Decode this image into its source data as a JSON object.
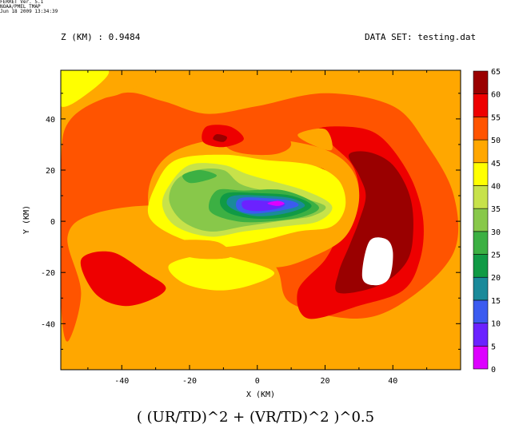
{
  "header": {
    "stamp": [
      "FERRET Ver. 5.1",
      "NOAA/PMEL TMAP",
      "Jun 18 2009 13:34:39"
    ],
    "z_label": "Z (KM) : 0.9484",
    "dataset": "DATA SET: testing.dat"
  },
  "caption": "( (UR/TD)^2 + (VR/TD)^2 )^0.5",
  "chart_data": {
    "type": "heatmap",
    "xlabel": "X (KM)",
    "ylabel": "Y (KM)",
    "xlim": [
      -58,
      60
    ],
    "ylim": [
      -58,
      59
    ],
    "xticks": [
      -40,
      -20,
      0,
      20,
      40
    ],
    "yticks": [
      -40,
      -20,
      0,
      20,
      40
    ],
    "colorbar": {
      "levels": [
        0,
        5,
        10,
        15,
        20,
        25,
        30,
        35,
        40,
        45,
        50,
        55,
        60,
        65
      ],
      "colors": [
        "#dd00ff",
        "#6b22ff",
        "#3b5bf0",
        "#1a8a9a",
        "#109a45",
        "#3cb043",
        "#88c84a",
        "#c7e24a",
        "#ffff00",
        "#ffa700",
        "#ff5400",
        "#ee0000",
        "#9a0000"
      ]
    },
    "fields": {
      "background_level": 45,
      "regions": [
        {
          "level": 50,
          "points": [
            [
              -56,
              -47
            ],
            [
              -52,
              -28
            ],
            [
              -56,
              -6
            ],
            [
              -48,
              3
            ],
            [
              -28,
              6
            ],
            [
              -10,
              -1
            ],
            [
              5,
              -17
            ],
            [
              10,
              -32
            ],
            [
              30,
              -38
            ],
            [
              45,
              -30
            ],
            [
              58,
              -12
            ],
            [
              58,
              10
            ],
            [
              50,
              30
            ],
            [
              40,
              45
            ],
            [
              20,
              50
            ],
            [
              0,
              45
            ],
            [
              -15,
              42
            ],
            [
              -28,
              47
            ],
            [
              -40,
              50
            ],
            [
              -55,
              40
            ],
            [
              -58,
              20
            ],
            [
              -58,
              -30
            ]
          ]
        },
        {
          "level": 55,
          "points": [
            [
              15,
              -38
            ],
            [
              30,
              -33
            ],
            [
              43,
              -27
            ],
            [
              48,
              -15
            ],
            [
              49,
              0
            ],
            [
              46,
              15
            ],
            [
              40,
              28
            ],
            [
              34,
              35
            ],
            [
              26,
              37
            ],
            [
              18,
              36
            ],
            [
              22,
              30
            ],
            [
              28,
              22
            ],
            [
              30,
              12
            ],
            [
              28,
              5
            ],
            [
              24,
              -5
            ],
            [
              20,
              -15
            ],
            [
              12,
              -27
            ]
          ]
        },
        {
          "level": 55,
          "points": [
            [
              -52,
              -15
            ],
            [
              -48,
              -28
            ],
            [
              -40,
              -33
            ],
            [
              -32,
              -31
            ],
            [
              -27,
              -26
            ],
            [
              -33,
              -20
            ],
            [
              -43,
              -12
            ]
          ]
        },
        {
          "level": 60,
          "points": [
            [
              24,
              -28
            ],
            [
              36,
              -25
            ],
            [
              44,
              -16
            ],
            [
              46,
              -4
            ],
            [
              45,
              10
            ],
            [
              40,
              22
            ],
            [
              33,
              27
            ],
            [
              27,
              26
            ],
            [
              30,
              18
            ],
            [
              32,
              10
            ],
            [
              30,
              0
            ],
            [
              27,
              -10
            ],
            [
              24,
              -20
            ]
          ]
        },
        {
          "level": 45,
          "points": [
            [
              -58,
              38
            ],
            [
              -58,
              59
            ],
            [
              -30,
              59
            ],
            [
              -40,
              50
            ],
            [
              -52,
              46
            ]
          ]
        },
        {
          "level": 40,
          "points": [
            [
              -58,
              45
            ],
            [
              -58,
              59
            ],
            [
              -44,
              59
            ],
            [
              -50,
              50
            ]
          ]
        },
        {
          "level": 45,
          "points": [
            [
              -32,
              13
            ],
            [
              -26,
              26
            ],
            [
              -12,
              32
            ],
            [
              5,
              32
            ],
            [
              20,
              28
            ],
            [
              28,
              20
            ],
            [
              30,
              8
            ],
            [
              26,
              -6
            ],
            [
              16,
              -14
            ],
            [
              5,
              -18
            ],
            [
              -8,
              -14
            ],
            [
              -20,
              -10
            ],
            [
              -30,
              -2
            ]
          ]
        },
        {
          "level": 50,
          "points": [
            [
              -12,
              38
            ],
            [
              -5,
              40
            ],
            [
              5,
              38
            ],
            [
              10,
              30
            ],
            [
              4,
              26
            ],
            [
              -8,
              28
            ]
          ]
        },
        {
          "level": 55,
          "points": [
            [
              -15,
              37
            ],
            [
              -8,
              37
            ],
            [
              -4,
              32
            ],
            [
              -10,
              29
            ],
            [
              -16,
              31
            ]
          ]
        },
        {
          "level": 60,
          "points": [
            [
              -12,
              34
            ],
            [
              -9,
              33
            ],
            [
              -10,
              31
            ],
            [
              -13,
              32
            ]
          ]
        },
        {
          "level": 55,
          "points": [
            [
              8,
              21
            ],
            [
              14,
              22
            ],
            [
              20,
              20
            ],
            [
              18,
              16
            ],
            [
              10,
              17
            ]
          ]
        },
        {
          "level": 60,
          "points": [
            [
              11,
              19
            ],
            [
              15,
              19
            ],
            [
              16,
              18
            ],
            [
              12,
              17
            ]
          ]
        },
        {
          "level": 45,
          "points": [
            [
              12,
              34
            ],
            [
              20,
              36
            ],
            [
              22,
              28
            ],
            [
              16,
              30
            ]
          ]
        },
        {
          "level": 40,
          "points": [
            [
              -30,
              14
            ],
            [
              -24,
              24
            ],
            [
              -10,
              26
            ],
            [
              2,
              24
            ],
            [
              16,
              22
            ],
            [
              24,
              16
            ],
            [
              26,
              6
            ],
            [
              22,
              -2
            ],
            [
              12,
              -4
            ],
            [
              0,
              -8
            ],
            [
              -12,
              -10
            ],
            [
              -24,
              -6
            ],
            [
              -32,
              2
            ]
          ]
        },
        {
          "level": 35,
          "points": [
            [
              -26,
              14
            ],
            [
              -20,
              22
            ],
            [
              -10,
              22
            ],
            [
              -2,
              18
            ],
            [
              14,
              12
            ],
            [
              22,
              6
            ],
            [
              18,
              0
            ],
            [
              8,
              -2
            ],
            [
              -4,
              -4
            ],
            [
              -14,
              -6
            ],
            [
              -24,
              -2
            ],
            [
              -28,
              6
            ]
          ]
        },
        {
          "level": 30,
          "points": [
            [
              -24,
              16
            ],
            [
              -18,
              20
            ],
            [
              -10,
              20
            ],
            [
              -4,
              14
            ],
            [
              10,
              10
            ],
            [
              20,
              6
            ],
            [
              16,
              2
            ],
            [
              6,
              0
            ],
            [
              -4,
              -2
            ],
            [
              -14,
              -4
            ],
            [
              -22,
              0
            ],
            [
              -26,
              8
            ]
          ]
        },
        {
          "level": 25,
          "points": [
            [
              -22,
              18
            ],
            [
              -17,
              20
            ],
            [
              -12,
              18
            ],
            [
              -15,
              16
            ],
            [
              -20,
              15
            ]
          ]
        },
        {
          "level": 25,
          "points": [
            [
              -12,
              12
            ],
            [
              -4,
              12
            ],
            [
              8,
              12
            ],
            [
              18,
              6
            ],
            [
              14,
              2
            ],
            [
              4,
              0
            ],
            [
              -6,
              0
            ],
            [
              -14,
              4
            ]
          ]
        },
        {
          "level": 20,
          "points": [
            [
              -9,
              11
            ],
            [
              0,
              11
            ],
            [
              10,
              10
            ],
            [
              16,
              6
            ],
            [
              10,
              2
            ],
            [
              0,
              1
            ],
            [
              -8,
              3
            ],
            [
              -11,
              7
            ]
          ]
        },
        {
          "level": 15,
          "points": [
            [
              -7,
              10
            ],
            [
              2,
              10
            ],
            [
              10,
              9
            ],
            [
              14,
              6
            ],
            [
              8,
              3
            ],
            [
              0,
              2
            ],
            [
              -6,
              4
            ],
            [
              -9,
              7
            ]
          ]
        },
        {
          "level": 10,
          "points": [
            [
              -5,
              9
            ],
            [
              3,
              9
            ],
            [
              10,
              8
            ],
            [
              12,
              6
            ],
            [
              6,
              4
            ],
            [
              -2,
              3
            ],
            [
              -6,
              5
            ]
          ]
        },
        {
          "level": 5,
          "points": [
            [
              -4,
              8
            ],
            [
              2,
              8
            ],
            [
              8,
              7
            ],
            [
              6,
              5
            ],
            [
              0,
              4
            ],
            [
              -4,
              5
            ]
          ]
        },
        {
          "level": 0,
          "points": [
            [
              3,
              7
            ],
            [
              6,
              8
            ],
            [
              8,
              7
            ],
            [
              6,
              6
            ]
          ]
        },
        {
          "level": 40,
          "points": [
            [
              -26,
              -17
            ],
            [
              -22,
              -24
            ],
            [
              -12,
              -27
            ],
            [
              -2,
              -25
            ],
            [
              5,
              -20
            ],
            [
              -5,
              -15
            ],
            [
              -15,
              -13
            ]
          ]
        },
        {
          "level": 45,
          "points": [
            [
              -25,
              -8
            ],
            [
              -20,
              -14
            ],
            [
              -8,
              -14
            ],
            [
              -12,
              -8
            ]
          ]
        }
      ],
      "holes": [
        [
          [
            31,
            -22
          ],
          [
            33,
            -8
          ],
          [
            38,
            -7
          ],
          [
            40,
            -12
          ],
          [
            39,
            -22
          ],
          [
            35,
            -25
          ]
        ]
      ]
    }
  }
}
